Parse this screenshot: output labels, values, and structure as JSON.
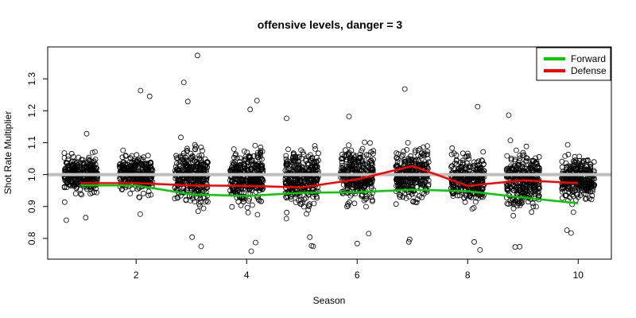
{
  "chart_data": {
    "type": "scatter",
    "title": "offensive levels, danger = 3",
    "xlabel": "Season",
    "ylabel": "Shot Rate Multiplier",
    "xlim": [
      0.4,
      10.6
    ],
    "ylim": [
      0.735,
      1.4
    ],
    "x_ticks": [
      2,
      4,
      6,
      8,
      10
    ],
    "y_ticks": [
      0.8,
      0.9,
      1.0,
      1.1,
      1.2,
      1.3
    ],
    "reference_line": 1.0,
    "legend_position": "top-right",
    "seasons": [
      1,
      2,
      3,
      4,
      5,
      6,
      7,
      8,
      9,
      10
    ],
    "series": [
      {
        "name": "Forward",
        "color": "#00cc00",
        "values": [
          0.966,
          0.966,
          0.938,
          0.933,
          0.943,
          0.945,
          0.953,
          0.948,
          0.928,
          0.91
        ]
      },
      {
        "name": "Defense",
        "color": "#ff0000",
        "values": [
          0.973,
          0.973,
          0.966,
          0.965,
          0.96,
          0.985,
          1.027,
          0.965,
          0.982,
          0.973
        ]
      }
    ],
    "scatter_groups": [
      {
        "season": 1,
        "center": 1.0,
        "spread": 0.045,
        "n": 320,
        "outliers": [
          0.857,
          0.865,
          1.128
        ]
      },
      {
        "season": 2,
        "center": 1.0,
        "spread": 0.045,
        "n": 320,
        "outliers": [
          1.263,
          1.245,
          0.876
        ]
      },
      {
        "season": 3,
        "center": 0.995,
        "spread": 0.07,
        "n": 340,
        "outliers": [
          1.373,
          1.289,
          1.229,
          0.775,
          0.804
        ]
      },
      {
        "season": 4,
        "center": 0.99,
        "spread": 0.07,
        "n": 340,
        "outliers": [
          1.232,
          1.204,
          0.76,
          0.787
        ]
      },
      {
        "season": 5,
        "center": 0.99,
        "spread": 0.07,
        "n": 340,
        "outliers": [
          0.804,
          0.777,
          0.775,
          1.176
        ]
      },
      {
        "season": 6,
        "center": 0.995,
        "spread": 0.065,
        "n": 330,
        "outliers": [
          0.784,
          0.815,
          1.182
        ]
      },
      {
        "season": 7,
        "center": 1.0,
        "spread": 0.065,
        "n": 330,
        "outliers": [
          1.268,
          0.789,
          0.797
        ]
      },
      {
        "season": 8,
        "center": 0.985,
        "spread": 0.06,
        "n": 330,
        "outliers": [
          1.213,
          0.764,
          0.789
        ]
      },
      {
        "season": 9,
        "center": 0.98,
        "spread": 0.07,
        "n": 340,
        "outliers": [
          0.774,
          0.773,
          1.186
        ]
      },
      {
        "season": 10,
        "center": 0.985,
        "spread": 0.055,
        "n": 320,
        "outliers": [
          0.817,
          0.826
        ]
      }
    ]
  }
}
